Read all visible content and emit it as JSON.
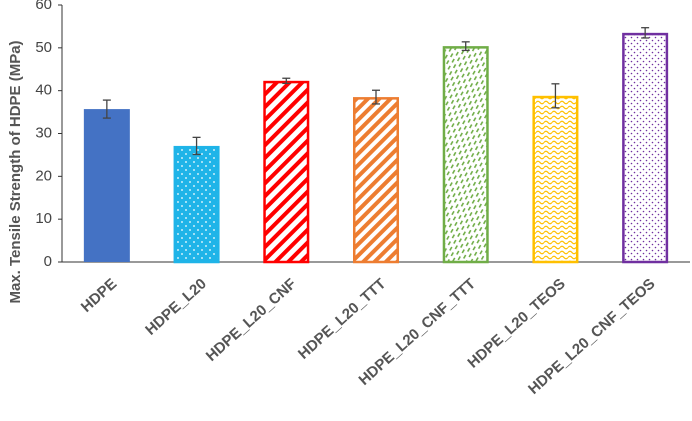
{
  "chart_data": {
    "type": "bar",
    "y_label": "Max. Tensile Strength of HDPE (MPa)",
    "categories": [
      "HDPE",
      "HDPE_L20",
      "HDPE_L20_CNF",
      "HDPE_L20_TTT",
      "HDPE_L20_CNF_TTT",
      "HDPE_L20_TEOS",
      "HDPE_L20_CNF_TEOS"
    ],
    "values": [
      35.7,
      27.1,
      42.3,
      38.5,
      50.4,
      38.8,
      53.5
    ],
    "errors": [
      2.1,
      2.0,
      0.6,
      1.6,
      1.0,
      2.8,
      1.2
    ],
    "colors": [
      "#4472c4",
      "#1fb4e8",
      "#ff0000",
      "#ed7d31",
      "#70ad47",
      "#ffc000",
      "#7030a0"
    ],
    "ylim": [
      0,
      60
    ],
    "yticks": [
      0,
      10,
      20,
      30,
      40,
      50,
      60
    ],
    "grid": false
  }
}
